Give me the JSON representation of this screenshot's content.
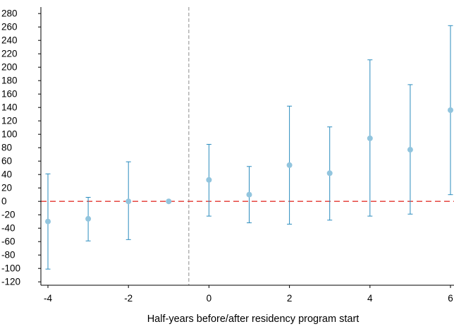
{
  "chart_data": {
    "type": "scatter",
    "title": "",
    "xlabel": "Half-years before/after residency program start",
    "ylabel": "",
    "xlim": [
      -4.6,
      6.1
    ],
    "ylim": [
      -130,
      290
    ],
    "x_ticks": [
      -4,
      -2,
      0,
      2,
      4,
      6
    ],
    "y_ticks": [
      280,
      260,
      240,
      220,
      200,
      180,
      160,
      140,
      120,
      100,
      80,
      60,
      40,
      20,
      0,
      -20,
      -40,
      -60,
      -80,
      -100,
      -120
    ],
    "x_tick_labels": [
      "-4",
      "-2",
      "0",
      "2",
      "4",
      "6"
    ],
    "y_tick_labels": [
      "280",
      "260",
      "240",
      "220",
      "200",
      "180",
      "160",
      "140",
      "120",
      "100",
      "80",
      "60",
      "40",
      "20",
      "0",
      "-20",
      "-40",
      "-60",
      "-80",
      "-100",
      "-120"
    ],
    "reference_lines": {
      "horizontal_y": 0,
      "vertical_x": -0.5
    },
    "grid": false,
    "legend": "none",
    "series": [
      {
        "marker": "circle",
        "points": [
          {
            "x": -4,
            "y": -30,
            "lower": -101,
            "upper": 41
          },
          {
            "x": -3,
            "y": -26,
            "lower": -59,
            "upper": 6
          },
          {
            "x": -2,
            "y": 0,
            "lower": -57,
            "upper": 59
          },
          {
            "x": -1,
            "y": 0,
            "lower": 0,
            "upper": 0
          },
          {
            "x": 0,
            "y": 32,
            "lower": -22,
            "upper": 85
          },
          {
            "x": 1,
            "y": 10,
            "lower": -32,
            "upper": 52
          },
          {
            "x": 2,
            "y": 54,
            "lower": -34,
            "upper": 142
          },
          {
            "x": 3,
            "y": 42,
            "lower": -28,
            "upper": 111
          },
          {
            "x": 4,
            "y": 94,
            "lower": -22,
            "upper": 211
          },
          {
            "x": 5,
            "y": 77,
            "lower": -19,
            "upper": 174
          },
          {
            "x": 6,
            "y": 136,
            "lower": 10,
            "upper": 262
          }
        ]
      }
    ],
    "colors": {
      "point": "#92c5de",
      "errorbar": "#2b8cbe",
      "zero_line": "#e3342f",
      "vertical_line": "#8c8c8c",
      "axis": "#000000"
    }
  }
}
